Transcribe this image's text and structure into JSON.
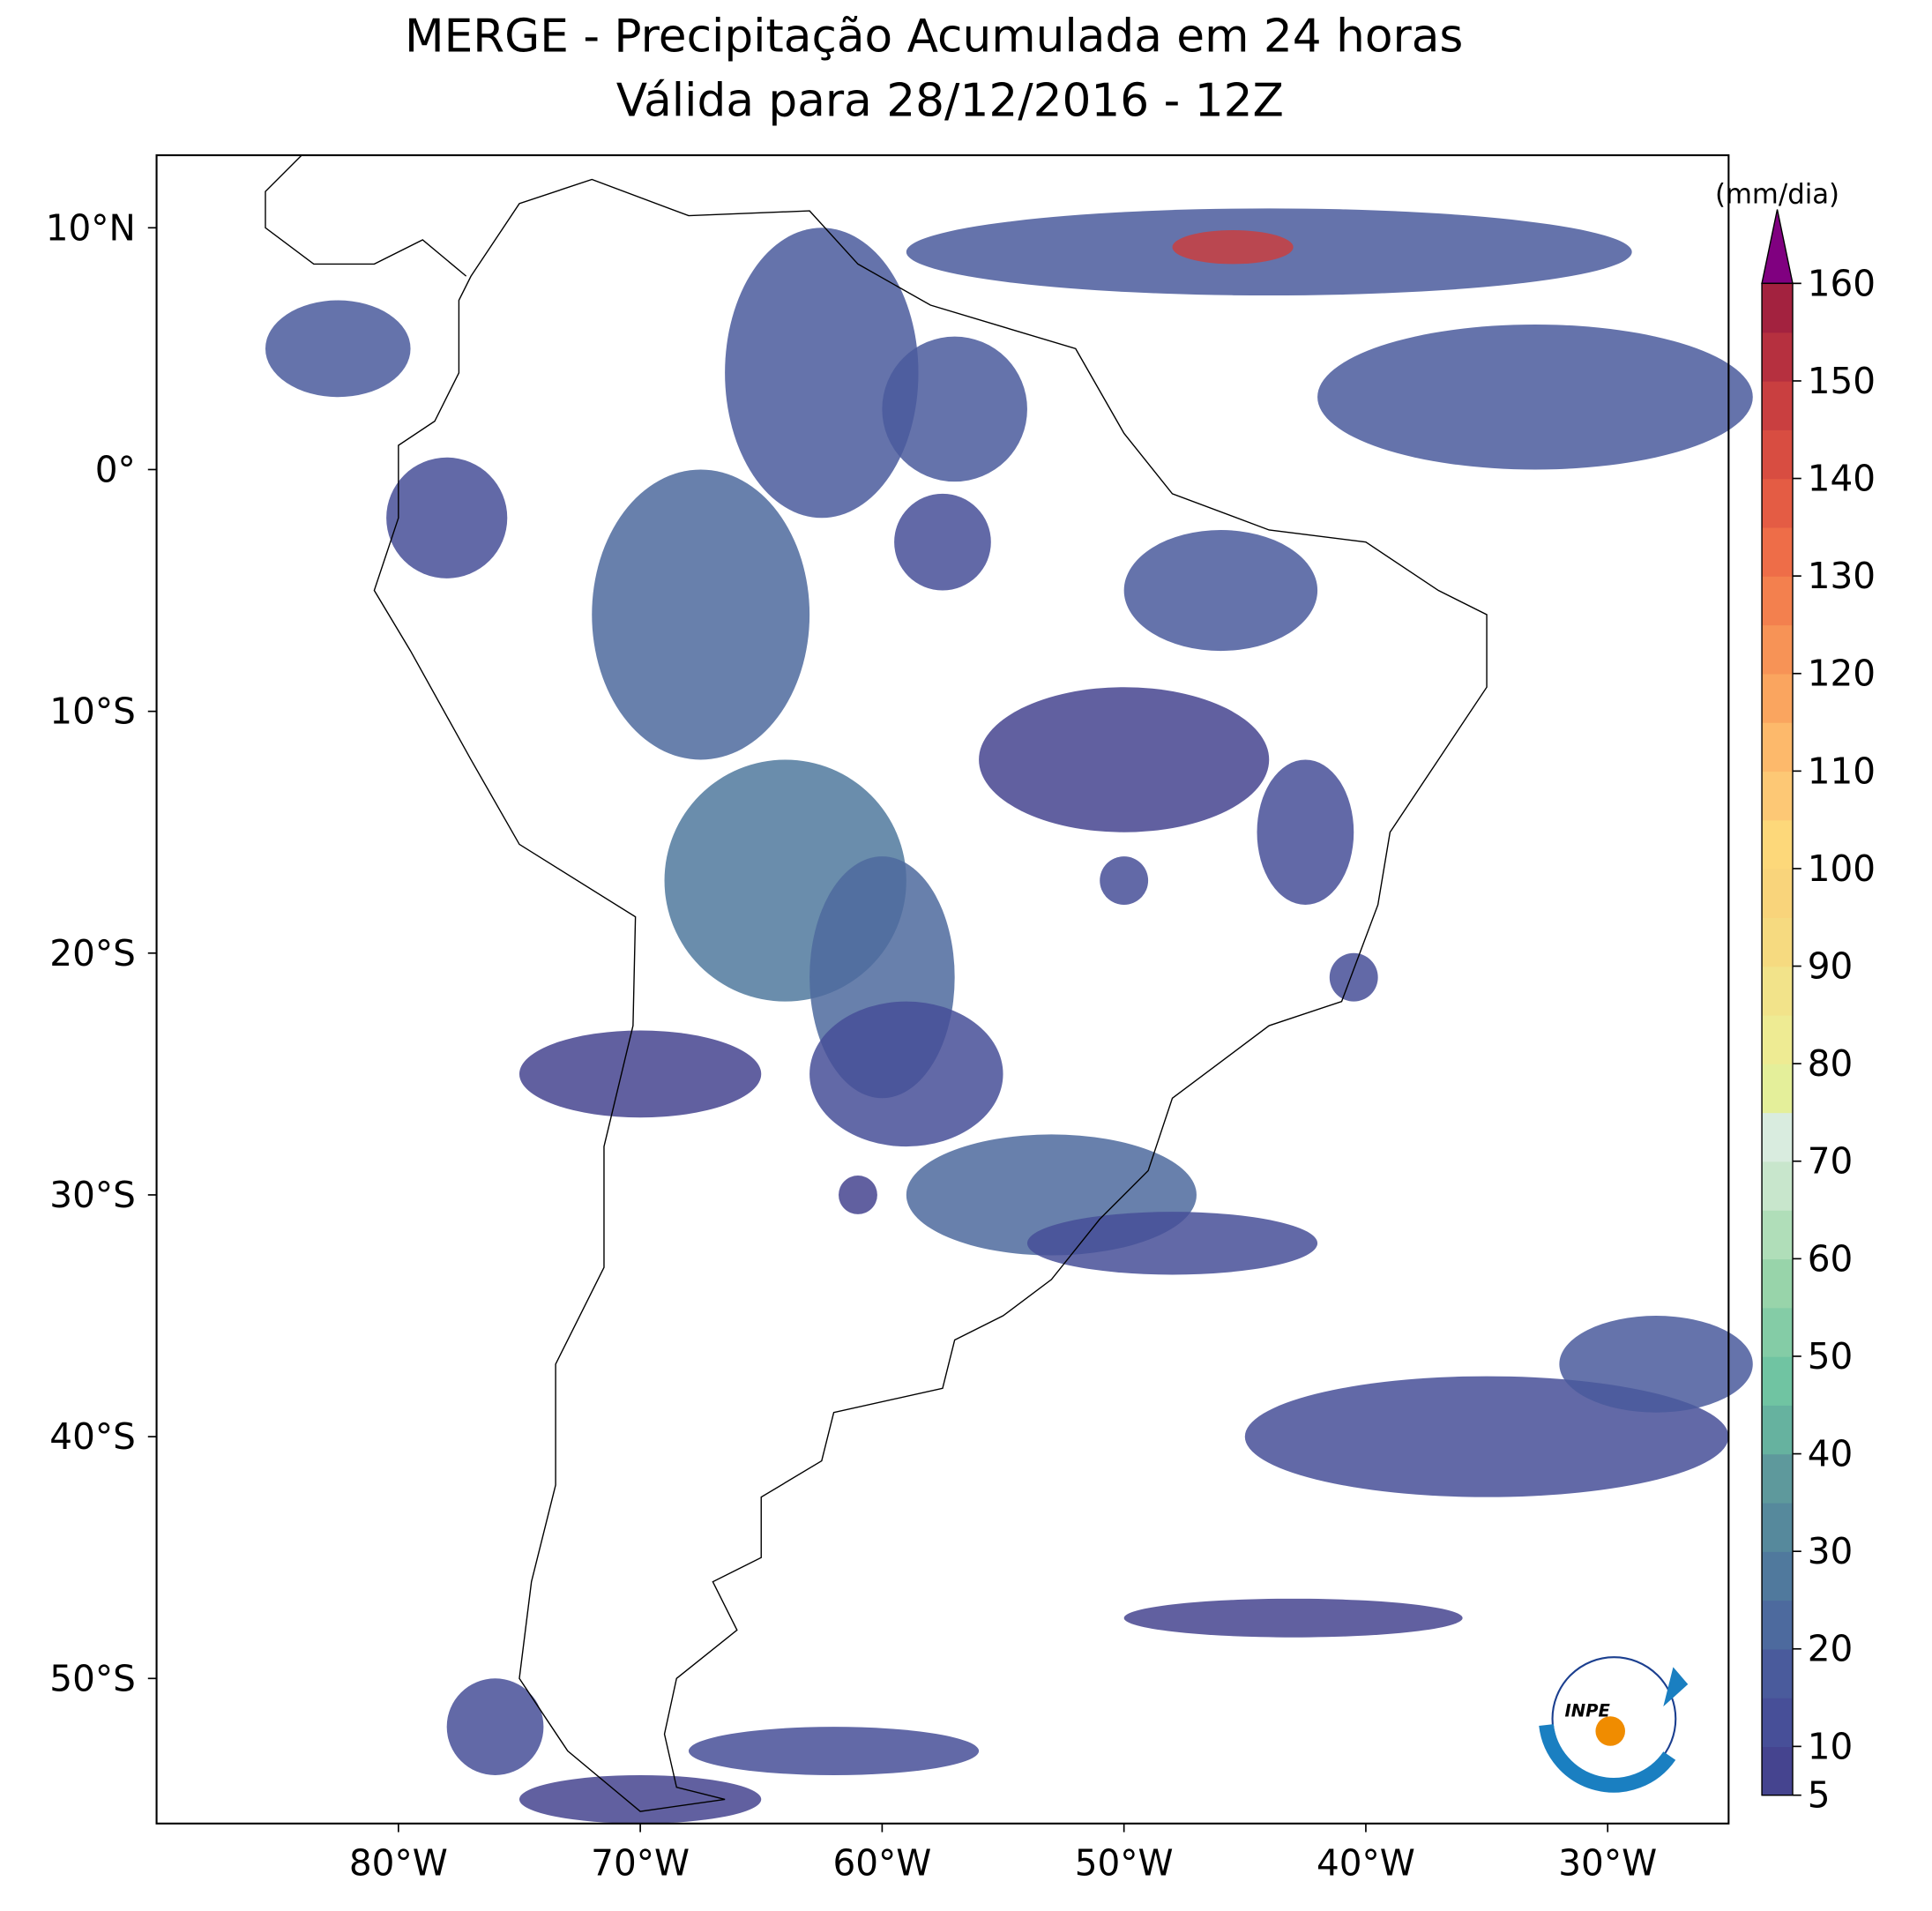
{
  "chart_data": {
    "type": "map",
    "title": "MERGE - Precipitação Acumulada em 24 horas",
    "subtitle": "Válida para 28/12/2016 - 12Z",
    "xlim": [
      -90,
      -25
    ],
    "ylim": [
      -56,
      13
    ],
    "xticks": [
      {
        "value": -80,
        "label": "80°W"
      },
      {
        "value": -70,
        "label": "70°W"
      },
      {
        "value": -60,
        "label": "60°W"
      },
      {
        "value": -50,
        "label": "50°W"
      },
      {
        "value": -40,
        "label": "40°W"
      },
      {
        "value": -30,
        "label": "30°W"
      }
    ],
    "yticks": [
      {
        "value": 10,
        "label": "10°N"
      },
      {
        "value": 0,
        "label": "0°"
      },
      {
        "value": -10,
        "label": "10°S"
      },
      {
        "value": -20,
        "label": "20°S"
      },
      {
        "value": -30,
        "label": "30°S"
      },
      {
        "value": -40,
        "label": "40°S"
      },
      {
        "value": -50,
        "label": "50°S"
      }
    ],
    "colorbar": {
      "label": "(mm/dia)",
      "lim": [
        5,
        160
      ],
      "ticks": [
        5,
        10,
        20,
        30,
        40,
        50,
        60,
        70,
        80,
        90,
        100,
        110,
        120,
        130,
        140,
        150,
        160
      ],
      "levels": [
        5,
        10,
        15,
        20,
        25,
        30,
        35,
        40,
        45,
        50,
        55,
        60,
        65,
        70,
        75,
        80,
        85,
        90,
        95,
        100,
        105,
        110,
        115,
        120,
        125,
        130,
        135,
        140,
        145,
        150,
        155,
        160
      ],
      "colors": [
        "#45448f",
        "#474f98",
        "#4a5b9c",
        "#4d6a9e",
        "#50799d",
        "#56899c",
        "#5e999c",
        "#66b29f",
        "#70c4a2",
        "#84cca6",
        "#98d4aa",
        "#b0deb9",
        "#c8e6cc",
        "#d9ecdf",
        "#e4ef9a",
        "#eeeb93",
        "#f2e38a",
        "#f6da80",
        "#f9d47b",
        "#fdd87a",
        "#fdc875",
        "#fdb96b",
        "#faa55f",
        "#f79356",
        "#f3804e",
        "#ee6d48",
        "#e45c44",
        "#d84d41",
        "#c93f40",
        "#b6303f",
        "#a3223f"
      ],
      "extend": "max",
      "extend_color": "#800080"
    },
    "annotations": [
      "INPE"
    ]
  }
}
